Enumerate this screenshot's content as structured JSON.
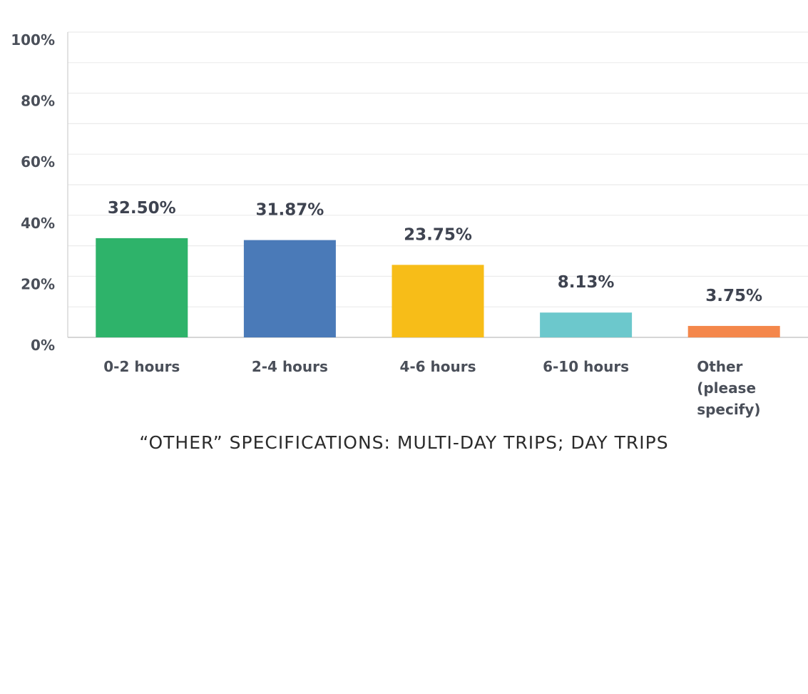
{
  "chart_data": {
    "type": "bar",
    "categories": [
      "0-2 hours",
      "2-4 hours",
      "4-6 hours",
      "6-10 hours",
      "Other (please specify)"
    ],
    "category_lines": [
      [
        "0-2 hours"
      ],
      [
        "2-4 hours"
      ],
      [
        "4-6 hours"
      ],
      [
        "6-10 hours"
      ],
      [
        "Other",
        "(please",
        "specify)"
      ]
    ],
    "values": [
      32.5,
      31.87,
      23.75,
      8.13,
      3.75
    ],
    "data_labels": [
      "32.50%",
      "31.87%",
      "23.75%",
      "8.13%",
      "3.75%"
    ],
    "colors": [
      "#2eb36a",
      "#4a7ab8",
      "#f7bd18",
      "#6cc8cc",
      "#f4874b"
    ],
    "ylim": [
      0,
      100
    ],
    "yticks": [
      0,
      20,
      40,
      60,
      80,
      100
    ],
    "ytick_labels": [
      "0%",
      "20%",
      "40%",
      "60%",
      "80%",
      "100%"
    ],
    "grid": true,
    "legend": "none"
  },
  "caption": "“OTHER” SPECIFICATIONS: MULTI-DAY TRIPS; DAY TRIPS"
}
